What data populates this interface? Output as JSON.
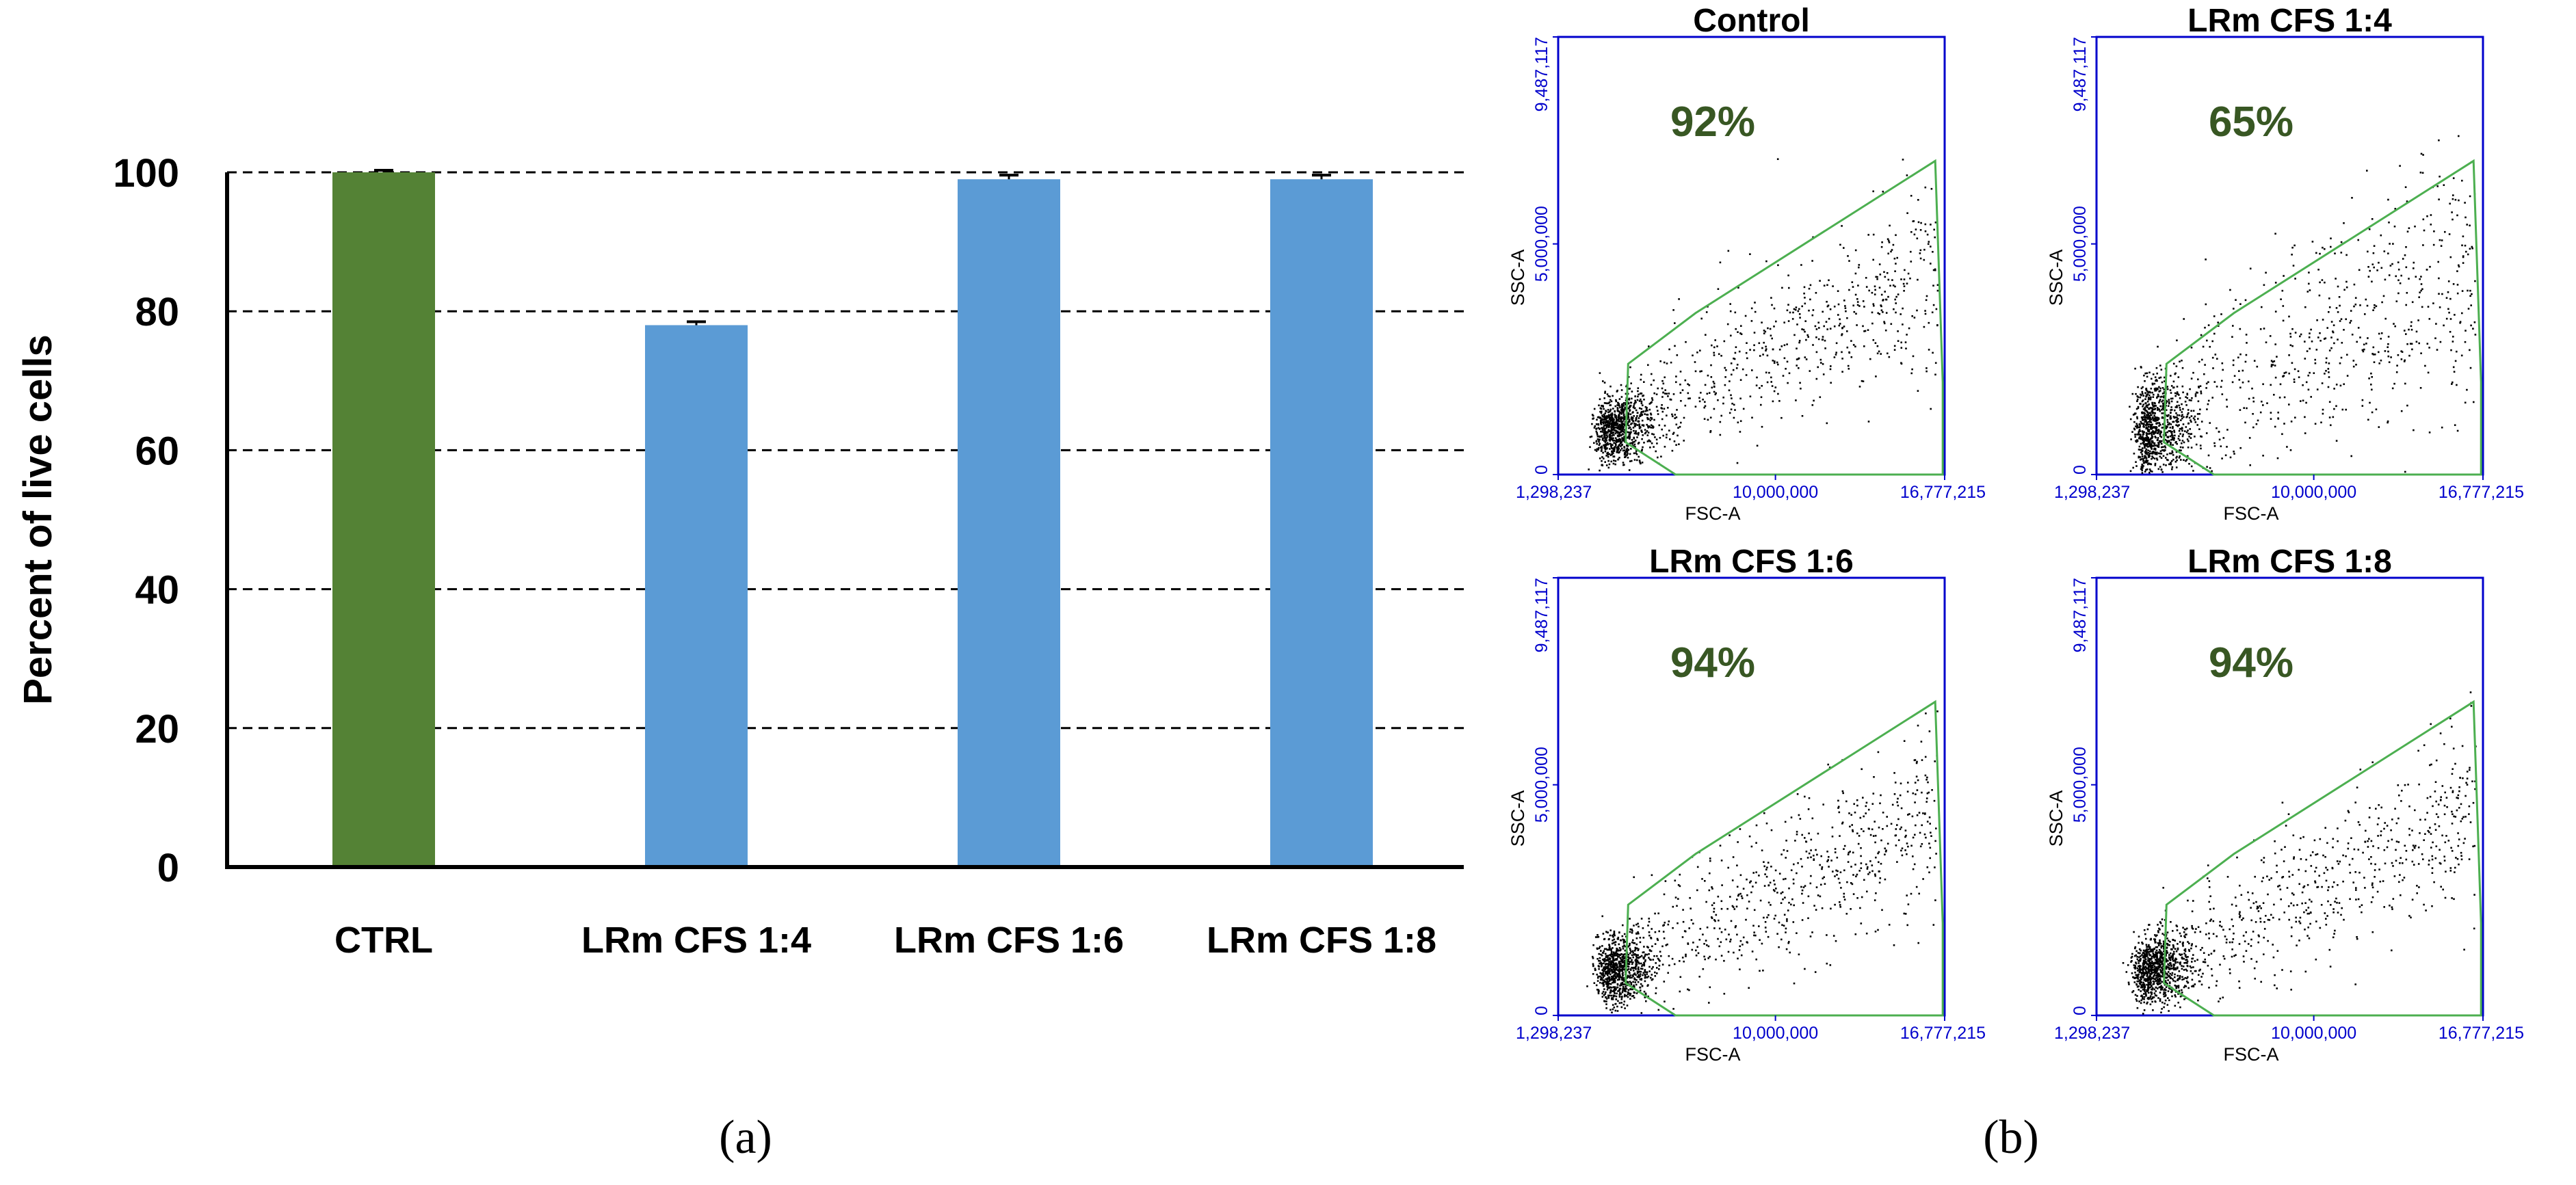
{
  "chart_data": [
    {
      "type": "bar",
      "title": "",
      "xlabel": "",
      "ylabel": "Percent of live cells",
      "ylim": [
        0,
        100
      ],
      "yticks": [
        "0",
        "20",
        "40",
        "60",
        "80",
        "100"
      ],
      "categories": [
        "CTRL",
        "LRm CFS 1:4",
        "LRm CFS 1:6",
        "LRm CFS 1:8"
      ],
      "values": [
        100,
        78,
        99,
        99
      ],
      "errors": [
        0.3,
        0.5,
        0.6,
        0.6
      ],
      "colors": [
        "#548235",
        "#5b9bd5",
        "#5b9bd5",
        "#5b9bd5"
      ],
      "grid": "dashed-horizontal",
      "caption": "(a)"
    },
    {
      "type": "scatter",
      "caption": "(b)",
      "xlabel": "FSC-A",
      "ylabel": "SSC-A",
      "xlim": [
        1298237,
        16777215
      ],
      "ylim": [
        0,
        9487117
      ],
      "xticks": [
        "1,298,237",
        "10,000,000",
        "16,777,215"
      ],
      "yticks": [
        "0",
        "5,000,000",
        "9,487,117"
      ],
      "axis_color": "#0000cc",
      "gate_color": "#4caf50",
      "label_color": "#385723",
      "gate_polygon": [
        [
          4000000,
          700000
        ],
        [
          6000000,
          0
        ],
        [
          16700000,
          0
        ],
        [
          16700000,
          2000000
        ],
        [
          16400000,
          6800000
        ],
        [
          6800000,
          3500000
        ],
        [
          4100000,
          2400000
        ]
      ],
      "panels": [
        {
          "title": "Control",
          "percent": "92%",
          "value": 92
        },
        {
          "title": "LRm CFS 1:4",
          "percent": "65%",
          "value": 65
        },
        {
          "title": "LRm CFS 1:6",
          "percent": "94%",
          "value": 94
        },
        {
          "title": "LRm CFS 1:8",
          "percent": "94%",
          "value": 94
        }
      ]
    }
  ]
}
